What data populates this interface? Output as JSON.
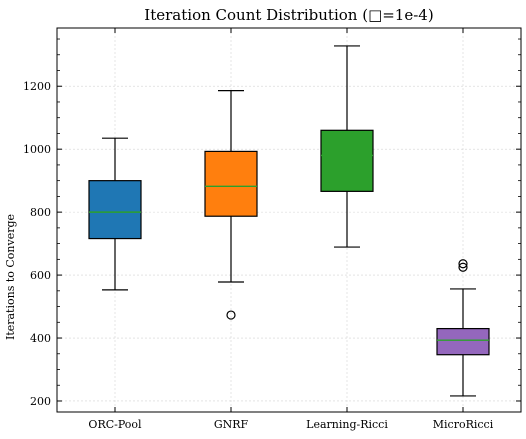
{
  "chart_data": {
    "type": "box",
    "title": "Iteration Count Distribution (□=1e-4)",
    "xlabel": "",
    "ylabel": "Iterations to Converge",
    "ylim": [
      165,
      1385
    ],
    "yticks": [
      200,
      400,
      600,
      800,
      1000,
      1200
    ],
    "grid": true,
    "categories": [
      "ORC-Pool",
      "GNRF",
      "Learning-Ricci",
      "MicroRicci"
    ],
    "boxes": [
      {
        "name": "ORC-Pool",
        "whisker_low": 553,
        "q1": 716,
        "median": 800,
        "q3": 900,
        "whisker_high": 1035,
        "outliers": [],
        "color": "#1f77b4"
      },
      {
        "name": "GNRF",
        "whisker_low": 578,
        "q1": 787,
        "median": 882,
        "q3": 993,
        "whisker_high": 1186,
        "outliers": [
          473
        ],
        "color": "#ff7f0e"
      },
      {
        "name": "Learning-Ricci",
        "whisker_low": 689,
        "q1": 866,
        "median": 980,
        "q3": 1060,
        "whisker_high": 1328,
        "outliers": [],
        "color": "#2ca02c"
      },
      {
        "name": "MicroRicci",
        "whisker_low": 216,
        "q1": 347,
        "median": 393,
        "q3": 430,
        "whisker_high": 556,
        "outliers": [
          625,
          636
        ],
        "color": "#9467bd"
      }
    ],
    "median_color": "#2ca02c"
  }
}
